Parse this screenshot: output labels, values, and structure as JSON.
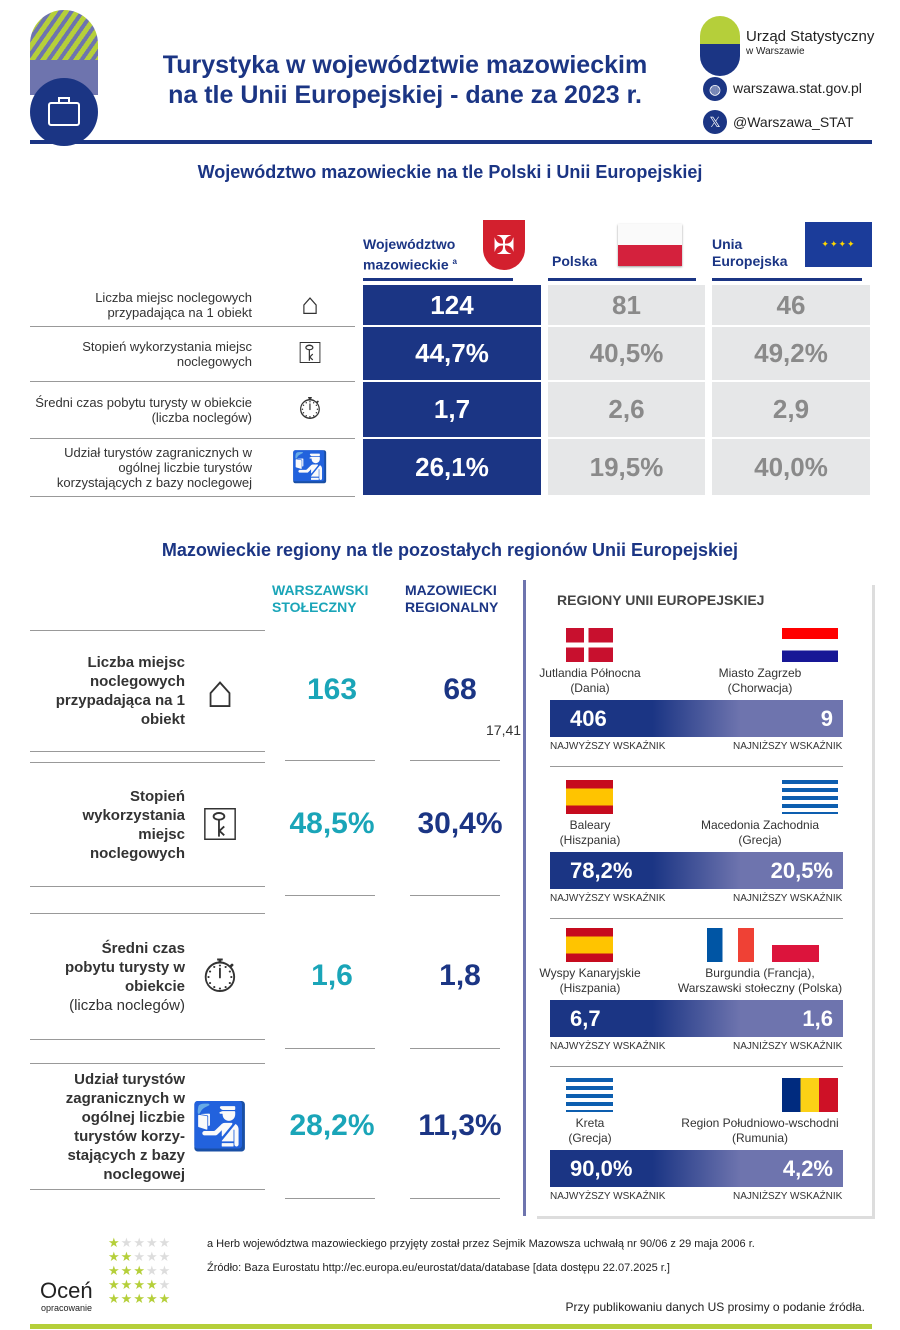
{
  "header": {
    "title_line1": "Turystyka w województwie mazowieckim",
    "title_line2": "na tle Unii Europejskiej - dane za 2023 r.",
    "org_name": "Urząd Statystyczny",
    "org_city": "w Warszawie",
    "website": "warszawa.stat.gov.pl",
    "twitter": "@Warszawa_STAT"
  },
  "section1": {
    "title": "Województwo mazowieckie na tle Polski i Unii Europejskiej",
    "columns": {
      "maz_line1": "Województwo",
      "maz_line2": "mazowieckie",
      "maz_sup": "a",
      "pl": "Polska",
      "eu_line1": "Unia",
      "eu_line2": "Europejska"
    },
    "rows": [
      {
        "label": "Liczba miejsc noclegowych przypadająca na 1 obiekt",
        "maz": "124",
        "pl": "81",
        "eu": "46"
      },
      {
        "label": "Stopień wykorzystania miejsc noclegowych",
        "maz": "44,7%",
        "pl": "40,5%",
        "eu": "49,2%"
      },
      {
        "label": "Średni czas pobytu turysty w obiekcie (liczba noclegów)",
        "maz": "1,7",
        "pl": "2,6",
        "eu": "2,9"
      },
      {
        "label": "Udział turystów zagranicznych w ogólnej liczbie turystów korzystających z bazy noclegowej",
        "maz": "26,1%",
        "pl": "19,5%",
        "eu": "40,0%"
      }
    ]
  },
  "section2": {
    "title": "Mazowieckie regiony na tle pozostałych regionów Unii Europejskiej",
    "col_ws_1": "WARSZAWSKI",
    "col_ws_2": "STOŁECZNY",
    "col_mr_1": "MAZOWIECKI",
    "col_mr_2": "REGIONALNY",
    "eu_title": "REGIONY UNII EUROPEJSKIEJ",
    "highest_label": "NAJWYŻSZY WSKAŹNIK",
    "lowest_label": "NAJNIŻSZY WSKAŹNIK",
    "overlap_text": "17,41",
    "rows": [
      {
        "label": "Liczba miejsc noclegowych przypadająca na 1 obiekt",
        "ws": "163",
        "mr": "68",
        "hi_name": "Jutlandia Północna",
        "hi_country": "(Dania)",
        "hi_val": "406",
        "lo_name": "Miasto Zagrzeb",
        "lo_country": "(Chorwacja)",
        "lo_val": "9"
      },
      {
        "label": "Stopień wykorzystania miejsc noclegowych",
        "ws": "48,5%",
        "mr": "30,4%",
        "hi_name": "Baleary",
        "hi_country": "(Hiszpania)",
        "hi_val": "78,2%",
        "lo_name": "Macedonia Zachodnia",
        "lo_country": "(Grecja)",
        "lo_val": "20,5%"
      },
      {
        "label": "Średni czas pobytu turysty w obiekcie",
        "label_extra": "(liczba noclegów)",
        "ws": "1,6",
        "mr": "1,8",
        "hi_name": "Wyspy Kanaryjskie",
        "hi_country": "(Hiszpania)",
        "hi_val": "6,7",
        "lo_name": "Burgundia (Francja),",
        "lo_country": "Warszawski stołeczny (Polska)",
        "lo_val": "1,6"
      },
      {
        "label": "Udział turystów zagranicznych w ogólnej liczbie turystów korzy-stających z bazy noclegowej",
        "ws": "28,2%",
        "mr": "11,3%",
        "hi_name": "Kreta",
        "hi_country": "(Grecja)",
        "hi_val": "90,0%",
        "lo_name": "Region Południowo-wschodni",
        "lo_country": "(Rumunia)",
        "lo_val": "4,2%"
      }
    ]
  },
  "footer": {
    "note": "a Herb województwa mazowieckiego przyjęty został przez Sejmik Mazowsza uchwałą nr 90/06 z 29 maja 2006 r.",
    "source": "Źródło: Baza Eurostatu http://ec.europa.eu/eurostat/data/database [data dostępu 22.07.2025 r.]",
    "rate_big": "Oceń",
    "rate_small": "opracowanie",
    "publish": "Przy publikowaniu danych US prosimy o podanie źródła."
  },
  "colors": {
    "navy": "#1b3584",
    "teal": "#1aa5b8",
    "lime": "#b5cf3a",
    "gray": "#e6e7e8"
  }
}
